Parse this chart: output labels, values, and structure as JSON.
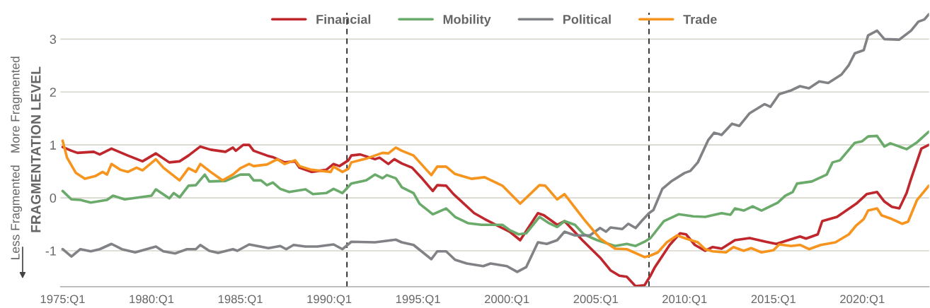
{
  "chart_data": {
    "type": "line",
    "ylabel": "FRAGMENTATION LEVEL",
    "annotations": [
      "Less Fragmented",
      "More Fragmented"
    ],
    "xlim": [
      "1974-12-01",
      "2023-10-20"
    ],
    "ylim": [
      -1.68,
      3.5
    ],
    "xticks": [
      {
        "value": "1975-01",
        "label": "1975:Q1"
      },
      {
        "value": "1980-01",
        "label": "1980:Q1"
      },
      {
        "value": "1985-01",
        "label": "1985:Q1"
      },
      {
        "value": "1990-01",
        "label": "1990:Q1"
      },
      {
        "value": "1995-01",
        "label": "1995:Q1"
      },
      {
        "value": "2000-01",
        "label": "2000:Q1"
      },
      {
        "value": "2005-01",
        "label": "2005:Q1"
      },
      {
        "value": "2010-01",
        "label": "2010:Q1"
      },
      {
        "value": "2015-01",
        "label": "2015:Q1"
      },
      {
        "value": "2020-01",
        "label": "2020:Q1"
      }
    ],
    "yticks": [
      -1,
      0,
      1,
      2,
      3
    ],
    "grid": "y",
    "legend": "top",
    "ref_lines": [
      {
        "axis": "x",
        "value": "1991-01",
        "color": "#000000",
        "line_style": "dashed"
      },
      {
        "axis": "x",
        "value": "2008-01",
        "color": "#000000",
        "line_style": "dashed"
      }
    ],
    "series": [
      {
        "name": "Financial",
        "color": "#c0272d",
        "x": [
          "1975-01",
          "1975-07",
          "1975-11",
          "1976-10",
          "1977-02",
          "1977-10",
          "1978-09",
          "1979-07",
          "1980-04",
          "1981-01",
          "1981-08",
          "1982-02",
          "1982-10",
          "1983-05",
          "1984-03",
          "1984-08",
          "1984-10",
          "1985-03",
          "1985-07",
          "1985-10",
          "1986-07",
          "1986-11",
          "1987-07",
          "1988-02",
          "1988-05",
          "1989-01",
          "1989-11",
          "1990-04",
          "1990-08",
          "1991-02",
          "1991-04",
          "1991-10",
          "1992-08",
          "1992-11",
          "1993-05",
          "1993-09",
          "1994-02",
          "1994-09",
          "1995-04",
          "1995-11",
          "1996-02",
          "1996-08",
          "1997-01",
          "1998-03",
          "1998-10",
          "1999-07",
          "2000-03",
          "2000-10",
          "2001-10",
          "2002-02",
          "2002-11",
          "2003-04",
          "2004-04",
          "2005-04",
          "2005-11",
          "2006-05",
          "2006-10",
          "2007-04",
          "2007-10",
          "2008-02",
          "2008-05",
          "2009-03",
          "2009-10",
          "2010-02",
          "2010-08",
          "2011-03",
          "2011-08",
          "2012-02",
          "2012-11",
          "2013-09",
          "2014-08",
          "2015-03",
          "2016-07",
          "2016-11",
          "2017-07",
          "2017-10",
          "2018-08",
          "2019-09",
          "2020-04",
          "2020-11",
          "2021-04",
          "2021-09",
          "2022-02",
          "2022-07",
          "2022-10",
          "2023-05",
          "2023-10"
        ],
        "values": [
          0.96,
          0.89,
          0.85,
          0.87,
          0.82,
          0.93,
          0.8,
          0.69,
          0.84,
          0.67,
          0.69,
          0.8,
          0.97,
          0.91,
          0.87,
          0.95,
          0.89,
          1.0,
          1.0,
          0.89,
          0.8,
          0.77,
          0.67,
          0.69,
          0.57,
          0.49,
          0.53,
          0.64,
          0.6,
          0.71,
          0.8,
          0.82,
          0.73,
          0.76,
          0.64,
          0.73,
          0.65,
          0.57,
          0.36,
          0.13,
          0.24,
          0.23,
          0.07,
          -0.29,
          -0.4,
          -0.53,
          -0.64,
          -0.8,
          -0.29,
          -0.33,
          -0.51,
          -0.44,
          -0.8,
          -1.13,
          -1.37,
          -1.47,
          -1.49,
          -1.67,
          -1.65,
          -1.47,
          -1.31,
          -0.89,
          -0.67,
          -0.69,
          -0.89,
          -1.0,
          -0.93,
          -0.96,
          -0.8,
          -0.76,
          -0.83,
          -0.87,
          -0.73,
          -0.77,
          -0.69,
          -0.44,
          -0.36,
          -0.11,
          0.07,
          0.11,
          -0.07,
          -0.17,
          -0.2,
          0.09,
          0.36,
          0.93,
          1.0
        ]
      },
      {
        "name": "Mobility",
        "color": "#6aaa6a",
        "x": [
          "1975-01",
          "1975-07",
          "1976-01",
          "1976-08",
          "1977-07",
          "1977-11",
          "1978-07",
          "1980-01",
          "1980-04",
          "1981-01",
          "1981-04",
          "1981-08",
          "1982-02",
          "1982-07",
          "1983-01",
          "1983-04",
          "1984-03",
          "1985-01",
          "1985-07",
          "1985-10",
          "1986-03",
          "1986-07",
          "1986-11",
          "1987-04",
          "1987-10",
          "1988-09",
          "1989-02",
          "1989-11",
          "1990-04",
          "1990-10",
          "1991-04",
          "1992-02",
          "1992-08",
          "1993-01",
          "1993-04",
          "1993-10",
          "1994-02",
          "1994-10",
          "1995-02",
          "1995-11",
          "1996-08",
          "1997-02",
          "1997-11",
          "1998-08",
          "1999-10",
          "2000-03",
          "2000-09",
          "2001-02",
          "2001-11",
          "2002-05",
          "2002-11",
          "2003-04",
          "2003-11",
          "2004-05",
          "2005-02",
          "2006-02",
          "2006-10",
          "2007-04",
          "2007-10",
          "2008-02",
          "2008-11",
          "2009-09",
          "2010-07",
          "2011-03",
          "2012-02",
          "2012-08",
          "2012-11",
          "2013-05",
          "2013-11",
          "2014-05",
          "2015-04",
          "2015-09",
          "2016-02",
          "2016-05",
          "2017-03",
          "2018-01",
          "2018-05",
          "2018-10",
          "2019-08",
          "2020-01",
          "2020-05",
          "2020-11",
          "2021-04",
          "2021-08",
          "2022-07",
          "2023-02",
          "2023-10"
        ],
        "values": [
          0.13,
          -0.03,
          -0.04,
          -0.09,
          -0.04,
          0.04,
          -0.03,
          0.04,
          0.16,
          -0.01,
          0.09,
          0.01,
          0.23,
          0.24,
          0.44,
          0.31,
          0.32,
          0.44,
          0.44,
          0.33,
          0.33,
          0.24,
          0.29,
          0.17,
          0.11,
          0.16,
          0.07,
          0.09,
          0.17,
          0.09,
          0.27,
          0.33,
          0.44,
          0.37,
          0.43,
          0.37,
          0.2,
          0.09,
          -0.11,
          -0.31,
          -0.2,
          -0.36,
          -0.48,
          -0.51,
          -0.51,
          -0.61,
          -0.69,
          -0.67,
          -0.36,
          -0.47,
          -0.55,
          -0.44,
          -0.51,
          -0.69,
          -0.8,
          -0.91,
          -0.87,
          -0.91,
          -0.83,
          -0.76,
          -0.44,
          -0.31,
          -0.35,
          -0.36,
          -0.29,
          -0.32,
          -0.2,
          -0.24,
          -0.16,
          -0.24,
          -0.09,
          0.04,
          0.11,
          0.27,
          0.31,
          0.44,
          0.67,
          0.71,
          1.04,
          1.07,
          1.16,
          1.17,
          0.97,
          1.03,
          0.92,
          1.05,
          1.25
        ]
      },
      {
        "name": "Political",
        "color": "#808285",
        "x": [
          "1975-01",
          "1975-07",
          "1976-01",
          "1976-08",
          "1977-02",
          "1977-10",
          "1978-05",
          "1979-02",
          "1980-04",
          "1980-09",
          "1981-05",
          "1982-01",
          "1982-07",
          "1982-10",
          "1983-04",
          "1983-10",
          "1984-08",
          "1984-11",
          "1985-07",
          "1986-08",
          "1987-04",
          "1987-08",
          "1988-01",
          "1988-09",
          "1989-05",
          "1990-04",
          "1990-10",
          "1991-04",
          "1992-08",
          "1993-10",
          "1994-02",
          "1994-10",
          "1995-10",
          "1996-02",
          "1996-08",
          "1997-02",
          "1997-10",
          "1998-09",
          "1999-02",
          "2000-01",
          "2000-08",
          "2001-02",
          "2001-10",
          "2002-04",
          "2002-11",
          "2003-04",
          "2003-11",
          "2004-09",
          "2005-04",
          "2005-08",
          "2005-11",
          "2006-07",
          "2006-11",
          "2007-04",
          "2007-08",
          "2008-01",
          "2008-04",
          "2008-10",
          "2009-04",
          "2010-01",
          "2010-05",
          "2010-10",
          "2011-05",
          "2011-09",
          "2012-02",
          "2012-09",
          "2013-02",
          "2013-09",
          "2014-07",
          "2014-11",
          "2015-05",
          "2016-01",
          "2016-07",
          "2017-01",
          "2017-08",
          "2018-02",
          "2018-11",
          "2019-04",
          "2019-08",
          "2020-02",
          "2020-05",
          "2020-11",
          "2021-04",
          "2022-02",
          "2022-10",
          "2023-03",
          "2023-07",
          "2023-10"
        ],
        "values": [
          -0.97,
          -1.11,
          -0.97,
          -1.01,
          -0.97,
          -0.87,
          -0.97,
          -1.03,
          -0.92,
          -1.01,
          -1.05,
          -0.97,
          -0.97,
          -0.89,
          -1.0,
          -1.04,
          -0.97,
          -1.0,
          -0.88,
          -0.95,
          -0.91,
          -0.97,
          -0.89,
          -0.92,
          -0.92,
          -0.88,
          -0.97,
          -0.83,
          -0.84,
          -0.79,
          -0.84,
          -0.89,
          -1.16,
          -1.01,
          -1.01,
          -1.17,
          -1.24,
          -1.29,
          -1.24,
          -1.29,
          -1.4,
          -1.31,
          -0.84,
          -0.87,
          -0.8,
          -0.64,
          -0.71,
          -0.71,
          -0.57,
          -0.64,
          -0.56,
          -0.59,
          -0.49,
          -0.57,
          -0.44,
          -0.29,
          -0.23,
          0.17,
          0.31,
          0.47,
          0.51,
          0.67,
          1.09,
          1.23,
          1.19,
          1.4,
          1.36,
          1.6,
          1.77,
          1.72,
          1.96,
          2.03,
          2.11,
          2.07,
          2.2,
          2.17,
          2.33,
          2.51,
          2.73,
          2.79,
          3.07,
          3.16,
          3.0,
          2.99,
          3.16,
          3.33,
          3.37,
          3.47
        ]
      },
      {
        "name": "Trade",
        "color": "#f7941d",
        "x": [
          "1975-01",
          "1975-04",
          "1975-10",
          "1976-04",
          "1976-11",
          "1977-04",
          "1977-07",
          "1977-10",
          "1978-04",
          "1978-09",
          "1979-03",
          "1979-07",
          "1980-04",
          "1980-09",
          "1981-08",
          "1982-02",
          "1982-07",
          "1982-10",
          "1983-05",
          "1984-01",
          "1984-08",
          "1985-01",
          "1985-07",
          "1985-10",
          "1986-07",
          "1987-02",
          "1987-07",
          "1988-02",
          "1988-05",
          "1989-01",
          "1990-02",
          "1990-04",
          "1990-10",
          "1991-02",
          "1991-04",
          "1992-03",
          "1993-01",
          "1993-05",
          "1993-10",
          "1994-02",
          "1994-10",
          "1995-10",
          "1996-02",
          "1996-08",
          "1997-02",
          "1998-01",
          "1998-10",
          "1999-10",
          "2000-10",
          "2001-11",
          "2002-03",
          "2002-11",
          "2003-04",
          "2004-05",
          "2005-04",
          "2006-02",
          "2006-10",
          "2007-10",
          "2008-02",
          "2008-07",
          "2009-01",
          "2009-08",
          "2010-02",
          "2010-10",
          "2011-03",
          "2011-08",
          "2012-05",
          "2012-10",
          "2013-05",
          "2013-10",
          "2014-05",
          "2015-01",
          "2015-05",
          "2016-01",
          "2016-07",
          "2017-01",
          "2017-09",
          "2018-07",
          "2019-04",
          "2019-09",
          "2020-02",
          "2020-05",
          "2020-11",
          "2021-02",
          "2021-09",
          "2022-04",
          "2022-08",
          "2023-02",
          "2023-10"
        ],
        "values": [
          1.08,
          0.76,
          0.47,
          0.36,
          0.41,
          0.49,
          0.44,
          0.64,
          0.53,
          0.49,
          0.57,
          0.52,
          0.73,
          0.57,
          0.33,
          0.56,
          0.49,
          0.64,
          0.49,
          0.33,
          0.44,
          0.56,
          0.64,
          0.6,
          0.63,
          0.73,
          0.64,
          0.71,
          0.6,
          0.53,
          0.49,
          0.59,
          0.49,
          0.55,
          0.67,
          0.75,
          0.85,
          0.84,
          0.95,
          0.89,
          0.8,
          0.43,
          0.59,
          0.59,
          0.45,
          0.36,
          0.39,
          0.23,
          -0.11,
          0.24,
          0.23,
          -0.03,
          0.07,
          -0.4,
          -0.77,
          -0.96,
          -0.97,
          -1.12,
          -1.09,
          -1.03,
          -0.84,
          -0.71,
          -0.77,
          -0.84,
          -0.97,
          -1.01,
          -1.03,
          -0.93,
          -1.0,
          -0.95,
          -1.03,
          -0.99,
          -0.88,
          -0.91,
          -0.89,
          -0.97,
          -0.89,
          -0.84,
          -0.69,
          -0.52,
          -0.4,
          -0.24,
          -0.2,
          -0.33,
          -0.4,
          -0.49,
          -0.45,
          -0.04,
          0.23
        ]
      }
    ]
  }
}
